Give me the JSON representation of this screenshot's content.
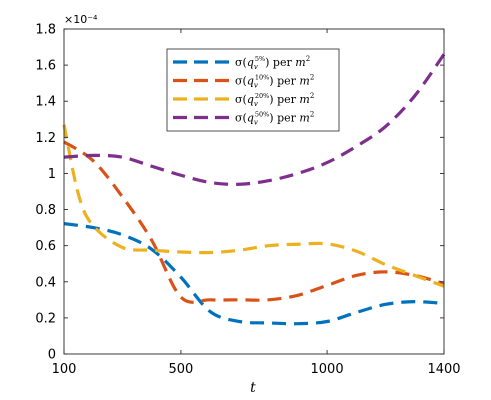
{
  "chart_data": {
    "type": "line",
    "xlabel": "t",
    "ylabel": "",
    "xlim": [
      100,
      1400
    ],
    "ylim": [
      0,
      0.00018
    ],
    "y_exponent_label": "×10⁻⁴",
    "xticks": [
      {
        "value": 100,
        "label": "100"
      },
      {
        "value": 500,
        "label": "500"
      },
      {
        "value": 1000,
        "label": "1000"
      },
      {
        "value": 1400,
        "label": "1400"
      }
    ],
    "yticks": [
      {
        "value": 0,
        "label": "0"
      },
      {
        "value": 2e-05,
        "label": "0.2"
      },
      {
        "value": 4e-05,
        "label": "0.4"
      },
      {
        "value": 6e-05,
        "label": "0.6"
      },
      {
        "value": 8e-05,
        "label": "0.8"
      },
      {
        "value": 0.0001,
        "label": "1"
      },
      {
        "value": 0.00012,
        "label": "1.2"
      },
      {
        "value": 0.00014,
        "label": "1.4"
      },
      {
        "value": 0.00016,
        "label": "1.6"
      },
      {
        "value": 0.00018,
        "label": "1.8"
      }
    ],
    "grid": false,
    "legend_position": "top-center",
    "line_style": "dashed",
    "series": [
      {
        "name": "σ(q_v^{5%}) per m²",
        "legend_parts": {
          "pre": "σ(",
          "var": "q",
          "sub": "v",
          "sup": "5%",
          "post": ") per ",
          "unit": "m",
          "unit_sup": "2"
        },
        "color": "#0072BD",
        "x": [
          100,
          200,
          300,
          400,
          500,
          600,
          700,
          800,
          900,
          1000,
          1100,
          1200,
          1300,
          1400
        ],
        "y": [
          7.22e-05,
          7e-05,
          6.6e-05,
          5.8e-05,
          4.25e-05,
          2.35e-05,
          1.8e-05,
          1.72e-05,
          1.68e-05,
          1.8e-05,
          2.3e-05,
          2.75e-05,
          2.9e-05,
          2.8e-05
        ]
      },
      {
        "name": "σ(q_v^{10%}) per m²",
        "legend_parts": {
          "pre": "σ(",
          "var": "q",
          "sub": "v",
          "sup": "10%",
          "post": ") per ",
          "unit": "m",
          "unit_sup": "2"
        },
        "color": "#D95319",
        "x": [
          100,
          200,
          300,
          400,
          500,
          600,
          700,
          800,
          900,
          1000,
          1100,
          1200,
          1300,
          1400
        ],
        "y": [
          0.0001175,
          0.000107,
          8.7e-05,
          6.3e-05,
          3.15e-05,
          3e-05,
          3e-05,
          3e-05,
          3.25e-05,
          3.8e-05,
          4.35e-05,
          4.55e-05,
          4.35e-05,
          3.9e-05
        ]
      },
      {
        "name": "σ(q_v^{20%}) per m²",
        "legend_parts": {
          "pre": "σ(",
          "var": "q",
          "sub": "v",
          "sup": "20%",
          "post": ") per ",
          "unit": "m",
          "unit_sup": "2"
        },
        "color": "#EDB120",
        "x": [
          100,
          150,
          200,
          300,
          400,
          500,
          600,
          700,
          800,
          900,
          1000,
          1100,
          1200,
          1300,
          1400
        ],
        "y": [
          0.000127,
          8.8e-05,
          7.1e-05,
          5.9e-05,
          5.75e-05,
          5.65e-05,
          5.62e-05,
          5.75e-05,
          6e-05,
          6.08e-05,
          6.1e-05,
          5.7e-05,
          4.95e-05,
          4.35e-05,
          3.75e-05
        ]
      },
      {
        "name": "σ(q_v^{50%}) per m²",
        "legend_parts": {
          "pre": "σ(",
          "var": "q",
          "sub": "v",
          "sup": "50%",
          "post": ") per ",
          "unit": "m",
          "unit_sup": "2"
        },
        "color": "#7E2F8E",
        "x": [
          100,
          200,
          300,
          400,
          500,
          600,
          700,
          800,
          900,
          1000,
          1100,
          1200,
          1300,
          1400
        ],
        "y": [
          0.000109,
          0.00011,
          0.000109,
          0.000104,
          9.9e-05,
          9.5e-05,
          9.4e-05,
          9.6e-05,
          0.0001,
          0.000106,
          0.000115,
          0.000126,
          0.000143,
          0.000166
        ]
      }
    ]
  }
}
